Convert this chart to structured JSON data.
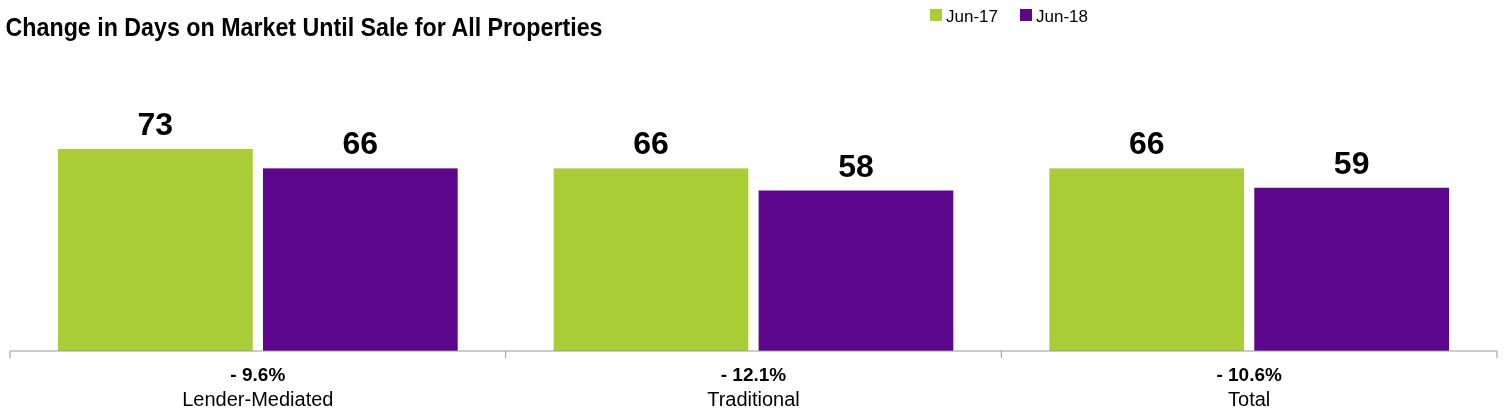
{
  "chart_data": {
    "type": "bar",
    "title": "Change in Days on Market Until Sale for All Properties",
    "categories": [
      "Lender-Mediated",
      "Traditional",
      "Total"
    ],
    "series": [
      {
        "name": "Jun-17",
        "color": "#a9cc37",
        "values": [
          73,
          66,
          66
        ]
      },
      {
        "name": "Jun-18",
        "color": "#5c068c",
        "values": [
          66,
          58,
          59
        ]
      }
    ],
    "data_labels": true,
    "legend": "top",
    "grid": false,
    "annotations": [
      "- 9.6%",
      "- 12.1%",
      "- 10.6%"
    ]
  }
}
